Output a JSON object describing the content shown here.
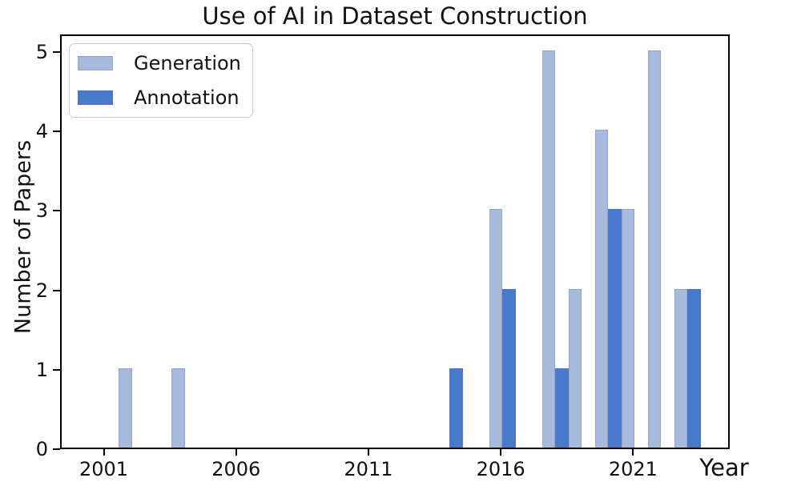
{
  "chart_data": {
    "type": "bar",
    "title": "Use of AI in Dataset Construction",
    "xlabel": "Year",
    "ylabel": "Number of Papers",
    "x_ticks": [
      {
        "year": 2001,
        "label": "2001"
      },
      {
        "year": 2006,
        "label": "2006"
      },
      {
        "year": 2011,
        "label": "2011"
      },
      {
        "year": 2016,
        "label": "2016"
      },
      {
        "year": 2021,
        "label": "2021"
      }
    ],
    "y_ticks": [
      {
        "value": 0,
        "label": "0"
      },
      {
        "value": 1,
        "label": "1"
      },
      {
        "value": 2,
        "label": "2"
      },
      {
        "value": 3,
        "label": "3"
      },
      {
        "value": 4,
        "label": "4"
      },
      {
        "value": 5,
        "label": "5"
      }
    ],
    "xlim": [
      1999.35,
      2024.65
    ],
    "ylim": [
      0,
      5.22
    ],
    "bar_width_years": 0.5,
    "group_offset_years": 0.25,
    "grid": false,
    "legend_position": "upper-left",
    "axis_color": "#000000",
    "series": [
      {
        "name": "Generation",
        "color": "#a6bade",
        "points": [
          {
            "year": 2002,
            "value": 1
          },
          {
            "year": 2004,
            "value": 1
          },
          {
            "year": 2016,
            "value": 3
          },
          {
            "year": 2018,
            "value": 5
          },
          {
            "year": 2019,
            "value": 2
          },
          {
            "year": 2020,
            "value": 4
          },
          {
            "year": 2021,
            "value": 3
          },
          {
            "year": 2022,
            "value": 5
          },
          {
            "year": 2023,
            "value": 2
          }
        ]
      },
      {
        "name": "Annotation",
        "color": "#4779cd",
        "points": [
          {
            "year": 2014,
            "value": 1
          },
          {
            "year": 2016,
            "value": 2
          },
          {
            "year": 2018,
            "value": 1
          },
          {
            "year": 2020,
            "value": 3
          },
          {
            "year": 2023,
            "value": 2
          }
        ]
      }
    ]
  }
}
